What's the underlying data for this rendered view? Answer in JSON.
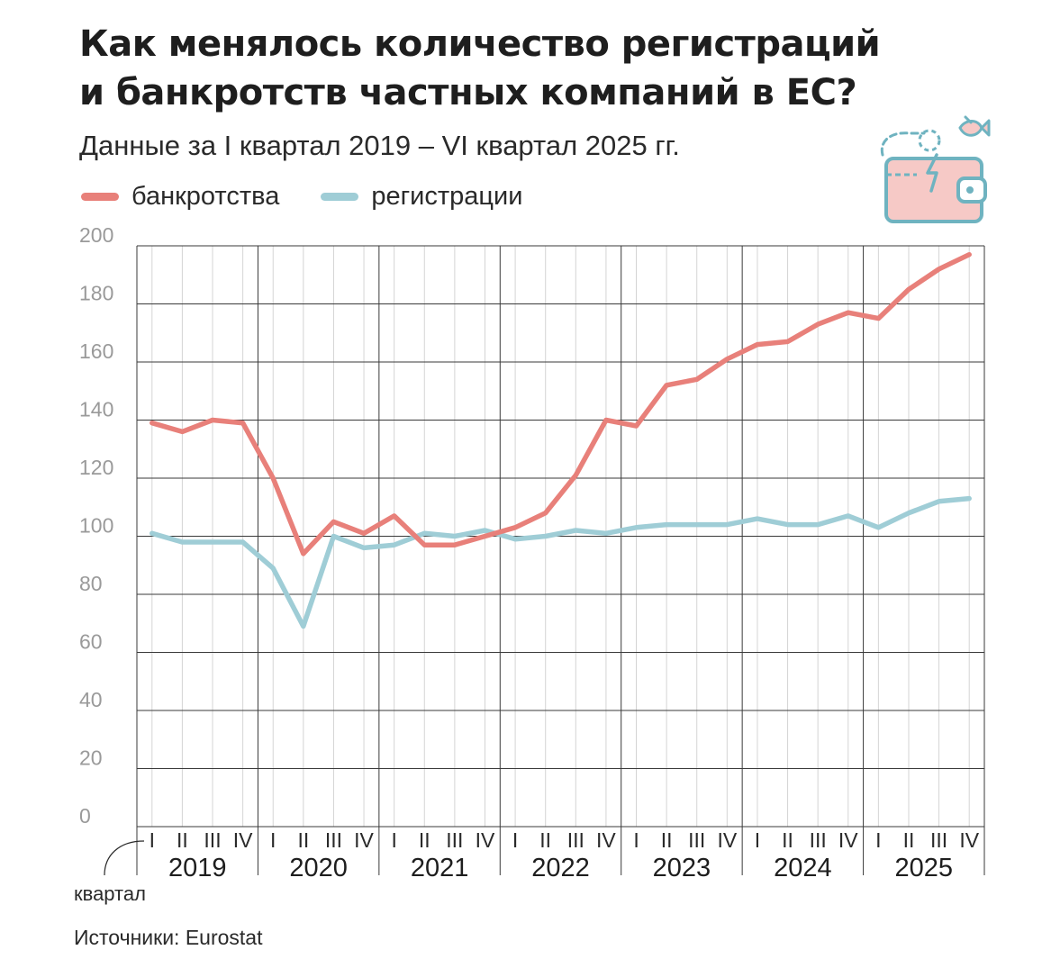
{
  "header": {
    "title_line1": "Как менялось количество регистраций",
    "title_line2": "и банкротств частных компаний в ЕС?",
    "subtitle": "Данные за I квартал 2019 – VI квартал 2025 гг."
  },
  "legend": {
    "items": [
      {
        "label": "банкротства",
        "color": "#e8807a"
      },
      {
        "label": "регистрации",
        "color": "#9fcdd6"
      }
    ]
  },
  "footer": {
    "unit_label": "квартал",
    "source": "Источники: Eurostat"
  },
  "icon": {
    "name": "wallet-icon"
  },
  "chart_data": {
    "type": "line",
    "ylim": [
      0,
      200
    ],
    "yticks": [
      0,
      20,
      40,
      60,
      80,
      100,
      120,
      140,
      160,
      180,
      200
    ],
    "grid": true,
    "quarter_labels": [
      "I",
      "II",
      "III",
      "IV"
    ],
    "years": [
      "2019",
      "2020",
      "2021",
      "2022",
      "2023",
      "2024",
      "2025"
    ],
    "series": [
      {
        "name": "банкротства",
        "color": "#e8807a",
        "values": [
          139,
          136,
          140,
          139,
          120,
          94,
          105,
          101,
          107,
          97,
          97,
          100,
          103,
          108,
          121,
          140,
          138,
          152,
          154,
          161,
          166,
          167,
          173,
          177,
          175,
          185,
          192,
          197
        ]
      },
      {
        "name": "регистрации",
        "color": "#9fcdd6",
        "values": [
          101,
          98,
          98,
          98,
          89,
          69,
          100,
          96,
          97,
          101,
          100,
          102,
          99,
          100,
          102,
          101,
          103,
          104,
          104,
          104,
          106,
          104,
          104,
          107,
          103,
          108,
          112,
          113
        ]
      }
    ]
  }
}
